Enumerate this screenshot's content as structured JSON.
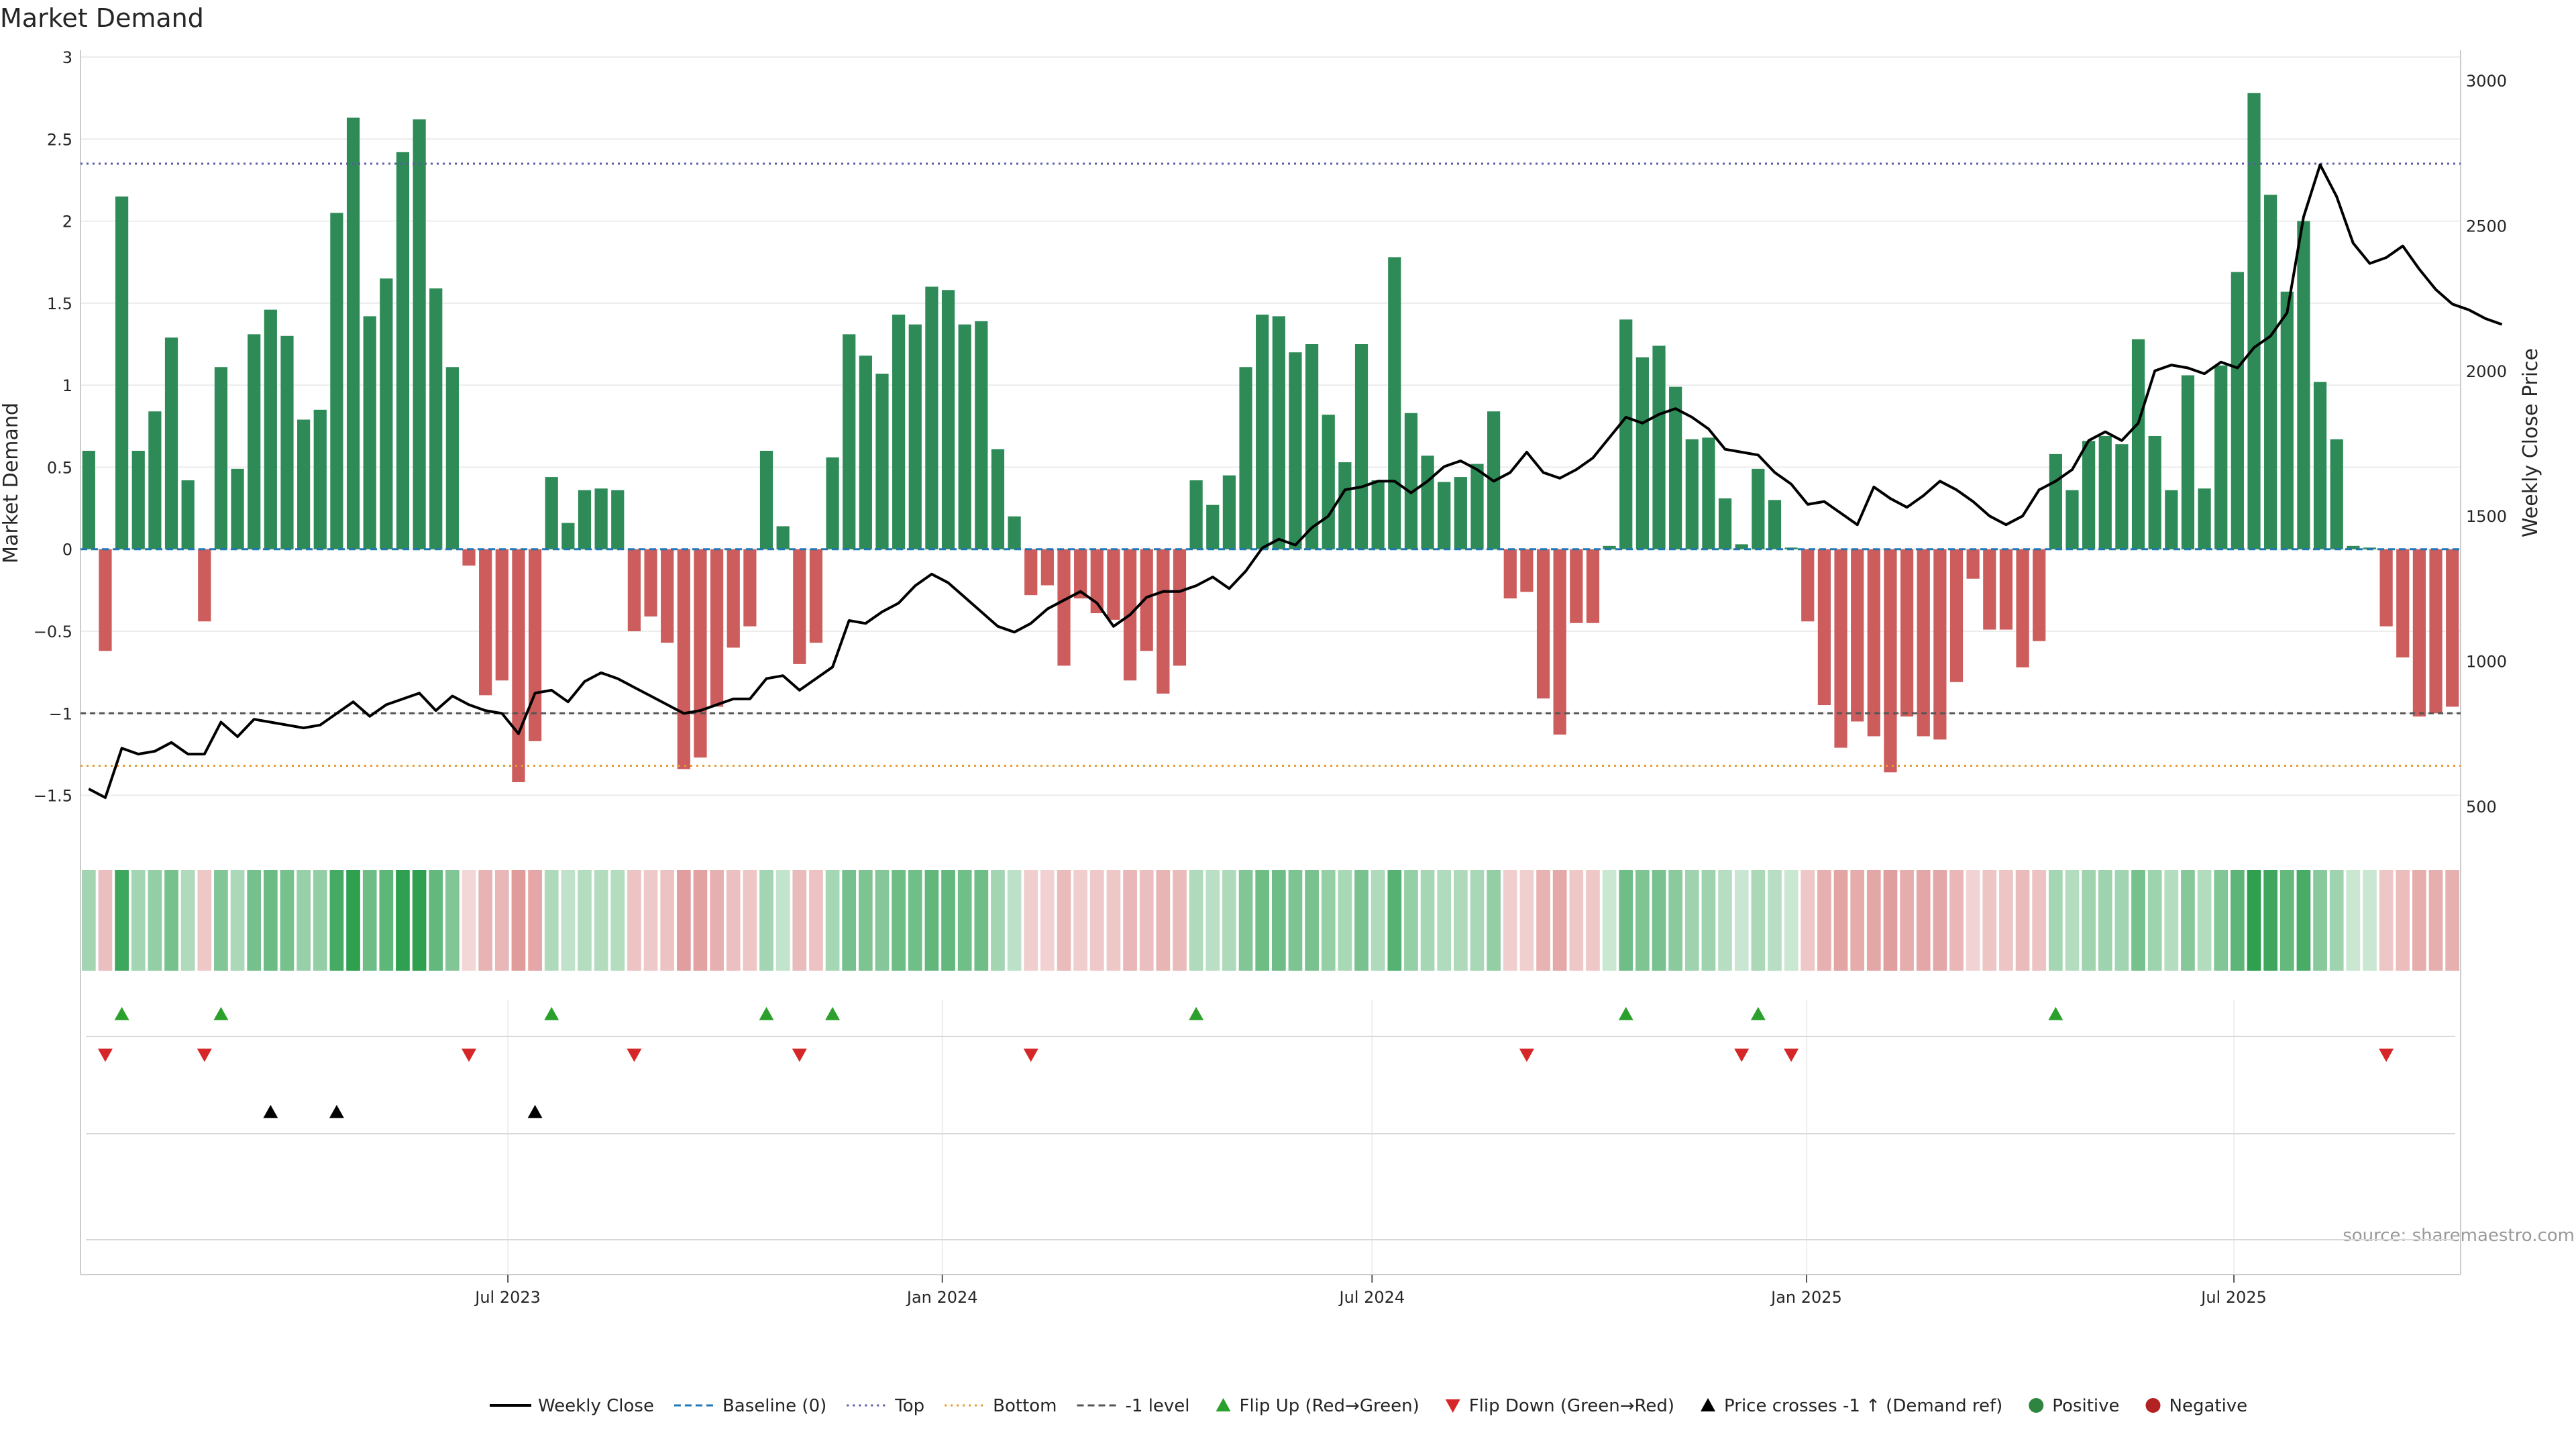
{
  "chart_data": {
    "type": "bar",
    "title": "Market Demand",
    "ylabel": "Market Demand",
    "y2label": "Weekly Close Price",
    "ylim": [
      -1.6,
      3.0
    ],
    "y2lim": [
      500,
      3000
    ],
    "yticks": [
      "3",
      "2.5",
      "2",
      "1.5",
      "1",
      "0.5",
      "0",
      "−0.5",
      "−1",
      "−1.5"
    ],
    "y2ticks": [
      "3000",
      "2500",
      "2000",
      "1500",
      "1000",
      "500"
    ],
    "x_start": "2023-01-01",
    "week_days": 7,
    "xticks": [
      {
        "label": "Jul 2023",
        "date": "2023-07-01"
      },
      {
        "label": "Jan 2024",
        "date": "2024-01-01"
      },
      {
        "label": "Jul 2024",
        "date": "2024-07-01"
      },
      {
        "label": "Jan 2025",
        "date": "2025-01-01"
      },
      {
        "label": "Jul 2025",
        "date": "2025-07-01"
      }
    ],
    "reference_lines": [
      {
        "name": "Top",
        "value": 2.35,
        "color": "#5a5aa8",
        "style": "dotted"
      },
      {
        "name": "-1 level",
        "value": -1.0,
        "color": "#555555",
        "style": "dashed"
      },
      {
        "name": "Bottom",
        "value": -1.32,
        "color": "#e69a2a",
        "style": "dotted"
      }
    ],
    "demand": [
      0.6,
      -0.62,
      2.15,
      0.6,
      0.84,
      1.29,
      0.42,
      -0.44,
      1.11,
      0.49,
      1.31,
      1.46,
      1.3,
      0.79,
      0.85,
      2.05,
      2.63,
      1.42,
      1.65,
      2.42,
      2.62,
      1.59,
      1.11,
      -0.1,
      -0.89,
      -0.8,
      -1.42,
      -1.17,
      0.44,
      0.16,
      0.36,
      0.37,
      0.36,
      -0.5,
      -0.41,
      -0.57,
      -1.34,
      -1.27,
      -0.96,
      -0.6,
      -0.47,
      0.6,
      0.14,
      -0.7,
      -0.57,
      0.56,
      1.31,
      1.18,
      1.07,
      1.43,
      1.37,
      1.6,
      1.58,
      1.37,
      1.39,
      0.61,
      0.2,
      -0.28,
      -0.22,
      -0.71,
      -0.3,
      -0.39,
      -0.43,
      -0.8,
      -0.62,
      -0.88,
      -0.71,
      0.42,
      0.27,
      0.45,
      1.11,
      1.43,
      1.42,
      1.2,
      1.25,
      0.82,
      0.53,
      1.25,
      0.42,
      1.78,
      0.83,
      0.57,
      0.41,
      0.44,
      0.52,
      0.84,
      -0.3,
      -0.26,
      -0.91,
      -1.13,
      -0.45,
      -0.45,
      0.02,
      1.4,
      1.17,
      1.24,
      0.99,
      0.67,
      0.68,
      0.31,
      0.03,
      0.49,
      0.3,
      0.01,
      -0.44,
      -0.95,
      -1.21,
      -1.05,
      -1.14,
      -1.36,
      -1.02,
      -1.14,
      -1.16,
      -0.81,
      -0.18,
      -0.49,
      -0.49,
      -0.72,
      -0.56,
      0.58,
      0.36,
      0.66,
      0.69,
      0.64,
      1.28,
      0.69,
      0.36,
      1.06,
      0.37,
      1.12,
      1.69,
      2.78,
      2.16,
      1.57,
      2.0,
      1.02,
      0.67,
      0.02,
      0.01,
      -0.47,
      -0.66,
      -1.02,
      -1.0,
      -0.96
    ],
    "price": [
      560,
      530,
      700,
      680,
      690,
      720,
      680,
      680,
      790,
      740,
      800,
      790,
      780,
      770,
      780,
      820,
      860,
      810,
      850,
      870,
      890,
      830,
      880,
      850,
      830,
      820,
      750,
      890,
      900,
      860,
      930,
      960,
      940,
      910,
      880,
      850,
      820,
      830,
      850,
      870,
      870,
      940,
      950,
      900,
      940,
      980,
      1140,
      1130,
      1170,
      1200,
      1260,
      1300,
      1270,
      1220,
      1170,
      1120,
      1100,
      1130,
      1180,
      1210,
      1240,
      1200,
      1120,
      1160,
      1220,
      1240,
      1240,
      1260,
      1290,
      1250,
      1310,
      1390,
      1420,
      1400,
      1460,
      1500,
      1590,
      1600,
      1620,
      1620,
      1580,
      1620,
      1670,
      1690,
      1660,
      1620,
      1650,
      1720,
      1650,
      1630,
      1660,
      1700,
      1770,
      1840,
      1820,
      1850,
      1870,
      1840,
      1800,
      1730,
      1720,
      1710,
      1650,
      1610,
      1540,
      1550,
      1510,
      1470,
      1600,
      1560,
      1530,
      1570,
      1620,
      1590,
      1550,
      1500,
      1470,
      1500,
      1590,
      1620,
      1660,
      1760,
      1790,
      1760,
      1820,
      2000,
      2020,
      2010,
      1990,
      2030,
      2010,
      2080,
      2120,
      2200,
      2530,
      2710,
      2600,
      2440,
      2370,
      2390,
      2430,
      2350,
      2280,
      2230,
      2210,
      2180,
      2160
    ],
    "signals": {
      "flip_up": [
        2,
        8,
        28,
        41,
        45,
        67,
        93,
        101,
        119
      ],
      "flip_down": [
        1,
        7,
        23,
        33,
        43,
        57,
        87,
        100,
        103,
        139
      ],
      "price_cross": [
        11,
        15,
        27
      ]
    },
    "grid": true,
    "legend": {
      "placement": "bottom-center",
      "items": [
        {
          "label": "Weekly Close",
          "kind": "line",
          "color": "#000000"
        },
        {
          "label": "Baseline (0)",
          "kind": "dashline",
          "color": "#1f77b4"
        },
        {
          "label": "Top",
          "kind": "dotline",
          "color": "#5a5aa8"
        },
        {
          "label": "Bottom",
          "kind": "dotline",
          "color": "#e69a2a"
        },
        {
          "label": "-1 level",
          "kind": "dashline",
          "color": "#555555"
        },
        {
          "label": "Flip Up (Red→Green)",
          "kind": "tri-up",
          "color": "#2ca02c"
        },
        {
          "label": "Flip Down (Green→Red)",
          "kind": "tri-down",
          "color": "#d62728"
        },
        {
          "label": "Price crosses -1 ↑ (Demand ref)",
          "kind": "tri-up",
          "color": "#000000"
        },
        {
          "label": "Positive",
          "kind": "dot",
          "color": "#2e8540"
        },
        {
          "label": "Negative",
          "kind": "dot",
          "color": "#b22222"
        }
      ]
    },
    "source": "source: sharemaestro.com"
  },
  "colors": {
    "positive_bar": "#2e8b57",
    "negative_bar": "#cd5c5c",
    "price_line": "#000000",
    "baseline": "#1f77b4",
    "flip_up": "#2ca02c",
    "flip_down": "#d62728",
    "price_cross": "#000000"
  }
}
